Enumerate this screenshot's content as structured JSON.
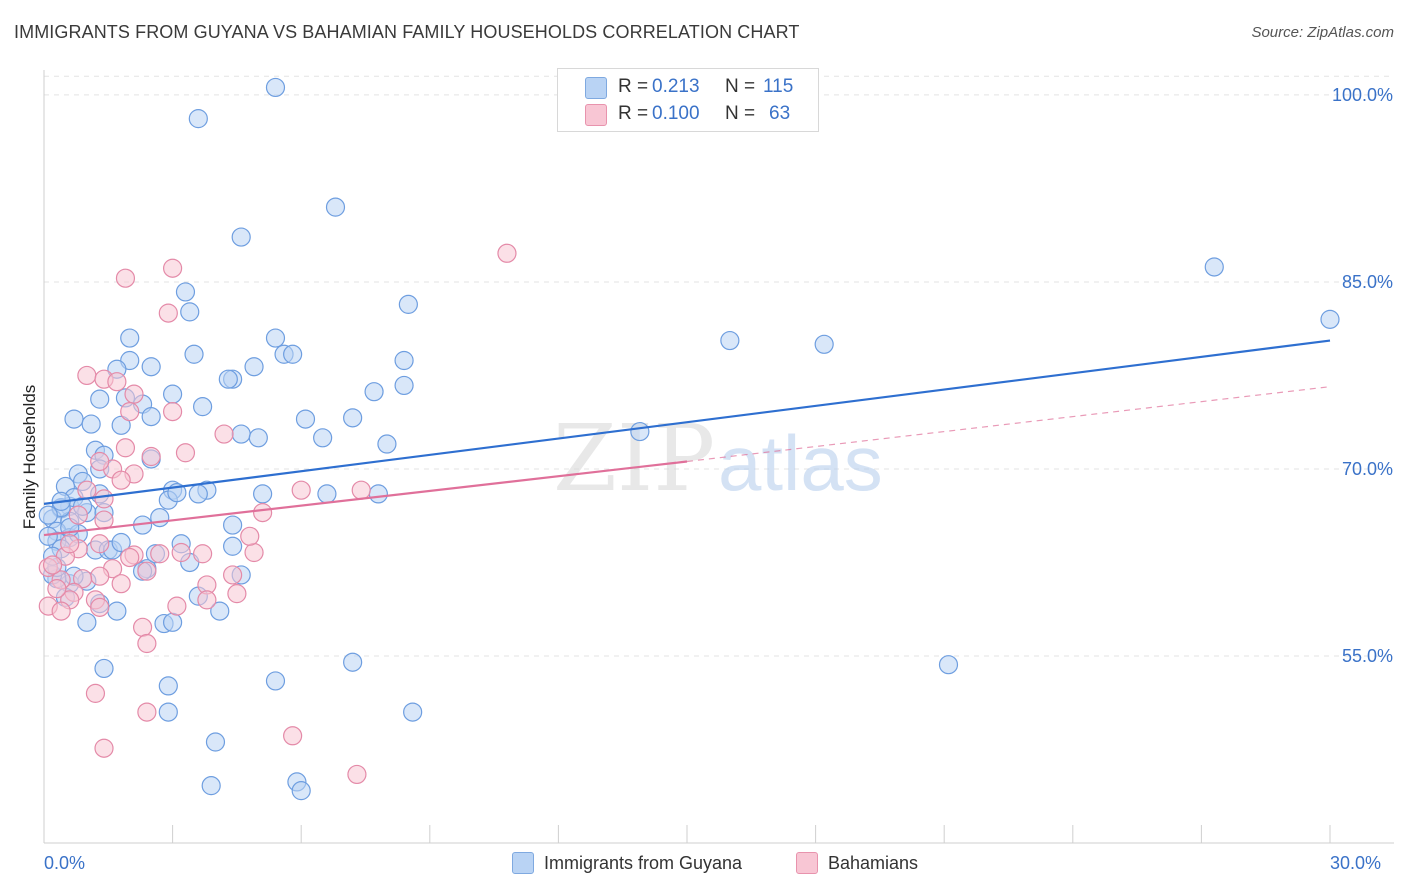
{
  "title": "IMMIGRANTS FROM GUYANA VS BAHAMIAN FAMILY HOUSEHOLDS CORRELATION CHART",
  "source": "Source: ZipAtlas.com",
  "watermark": {
    "zip": "ZIP",
    "atlas": "atlas"
  },
  "colors": {
    "blue_fill": "#b9d3f4",
    "blue_stroke": "#6e9ee0",
    "blue_line": "#2e6fd0",
    "pink_fill": "#f8c6d4",
    "pink_stroke": "#e48aa8",
    "pink_line": "#e0709a",
    "axis_text": "#3a72c8",
    "grid": "#e3e3e3"
  },
  "stats": {
    "rows": [
      {
        "r_label": "R =",
        "r_value": "0.213",
        "n_label": "N =",
        "n_value": "115"
      },
      {
        "r_label": "R =",
        "r_value": "0.100",
        "n_label": "N =",
        "n_value": "63"
      }
    ]
  },
  "legend": {
    "items": [
      {
        "label": "Immigrants from Guyana"
      },
      {
        "label": "Bahamians"
      }
    ]
  },
  "chart_data": {
    "type": "scatter",
    "title": "IMMIGRANTS FROM GUYANA VS BAHAMIAN FAMILY HOUSEHOLDS CORRELATION CHART",
    "xlabel": "",
    "ylabel": "Family Households",
    "xlim": [
      0,
      30
    ],
    "ylim": [
      40,
      102
    ],
    "x_tick_labels": [
      "0.0%",
      "30.0%"
    ],
    "y_ticks": [
      55,
      70,
      85,
      100
    ],
    "y_tick_labels": [
      "55.0%",
      "70.0%",
      "85.0%",
      "100.0%"
    ],
    "grid": "horizontal dashed",
    "legend_position": "bottom-center",
    "series": [
      {
        "name": "Immigrants from Guyana",
        "r": 0.213,
        "n": 115,
        "trend": {
          "x": [
            0,
            30
          ],
          "y": [
            67.2,
            80.3
          ]
        },
        "points": [
          [
            5.4,
            100.6
          ],
          [
            3.6,
            98.1
          ],
          [
            6.8,
            91.0
          ],
          [
            4.6,
            88.6
          ],
          [
            27.3,
            86.2
          ],
          [
            3.3,
            84.2
          ],
          [
            8.5,
            83.2
          ],
          [
            3.4,
            82.6
          ],
          [
            30.0,
            82.0
          ],
          [
            2.0,
            80.5
          ],
          [
            5.4,
            80.5
          ],
          [
            16.0,
            80.3
          ],
          [
            18.2,
            80.0
          ],
          [
            3.5,
            79.2
          ],
          [
            5.6,
            79.2
          ],
          [
            5.8,
            79.2
          ],
          [
            8.4,
            78.7
          ],
          [
            2.0,
            78.7
          ],
          [
            4.9,
            78.2
          ],
          [
            2.5,
            78.2
          ],
          [
            1.7,
            78.0
          ],
          [
            4.4,
            77.2
          ],
          [
            4.3,
            77.2
          ],
          [
            8.4,
            76.7
          ],
          [
            7.7,
            76.2
          ],
          [
            3.0,
            76.0
          ],
          [
            1.3,
            75.6
          ],
          [
            2.3,
            75.2
          ],
          [
            3.7,
            75.0
          ],
          [
            1.9,
            75.7
          ],
          [
            2.5,
            74.2
          ],
          [
            6.1,
            74.0
          ],
          [
            7.2,
            74.1
          ],
          [
            0.7,
            74.0
          ],
          [
            1.1,
            73.6
          ],
          [
            1.8,
            73.5
          ],
          [
            4.6,
            72.8
          ],
          [
            5.0,
            72.5
          ],
          [
            6.5,
            72.5
          ],
          [
            13.9,
            73.0
          ],
          [
            8.0,
            72.0
          ],
          [
            1.2,
            71.5
          ],
          [
            2.5,
            70.8
          ],
          [
            1.4,
            71.1
          ],
          [
            1.3,
            70.0
          ],
          [
            0.8,
            69.6
          ],
          [
            0.9,
            69.0
          ],
          [
            0.5,
            68.6
          ],
          [
            3.0,
            68.3
          ],
          [
            3.8,
            68.3
          ],
          [
            5.1,
            68.0
          ],
          [
            6.6,
            68.0
          ],
          [
            7.8,
            68.0
          ],
          [
            1.3,
            68.0
          ],
          [
            3.6,
            68.0
          ],
          [
            0.6,
            67.0
          ],
          [
            0.7,
            67.7
          ],
          [
            2.9,
            67.5
          ],
          [
            3.1,
            68.1
          ],
          [
            0.4,
            66.8
          ],
          [
            1.0,
            66.5
          ],
          [
            0.9,
            67.0
          ],
          [
            1.4,
            66.5
          ],
          [
            0.2,
            66.0
          ],
          [
            0.6,
            65.8
          ],
          [
            2.3,
            65.5
          ],
          [
            0.3,
            65.0
          ],
          [
            0.6,
            64.5
          ],
          [
            4.4,
            65.5
          ],
          [
            0.8,
            64.8
          ],
          [
            0.3,
            64.2
          ],
          [
            3.2,
            64.0
          ],
          [
            1.2,
            63.5
          ],
          [
            1.5,
            63.5
          ],
          [
            1.6,
            63.5
          ],
          [
            2.4,
            62.0
          ],
          [
            3.4,
            62.5
          ],
          [
            4.4,
            63.8
          ],
          [
            4.6,
            61.5
          ],
          [
            1.0,
            61.0
          ],
          [
            0.6,
            60.8
          ],
          [
            0.7,
            61.4
          ],
          [
            0.3,
            61.2
          ],
          [
            0.2,
            61.5
          ],
          [
            3.6,
            59.8
          ],
          [
            4.1,
            58.6
          ],
          [
            1.7,
            58.6
          ],
          [
            1.0,
            57.7
          ],
          [
            2.8,
            57.6
          ],
          [
            3.0,
            57.7
          ],
          [
            7.2,
            54.5
          ],
          [
            21.1,
            54.3
          ],
          [
            1.4,
            54.0
          ],
          [
            5.4,
            53.0
          ],
          [
            2.9,
            52.6
          ],
          [
            8.6,
            50.5
          ],
          [
            2.9,
            50.5
          ],
          [
            4.0,
            48.1
          ],
          [
            5.9,
            44.9
          ],
          [
            6.0,
            44.2
          ],
          [
            3.9,
            44.6
          ],
          [
            0.3,
            62.1
          ],
          [
            0.5,
            59.7
          ],
          [
            2.6,
            63.2
          ],
          [
            0.4,
            66.9
          ],
          [
            1.3,
            59.2
          ],
          [
            2.3,
            61.8
          ],
          [
            0.1,
            64.6
          ],
          [
            1.8,
            64.1
          ],
          [
            2.7,
            66.1
          ],
          [
            0.4,
            63.6
          ],
          [
            0.2,
            63.0
          ],
          [
            0.4,
            67.4
          ],
          [
            0.6,
            65.3
          ],
          [
            0.1,
            66.3
          ]
        ]
      },
      {
        "name": "Bahamians",
        "r": 0.1,
        "n": 63,
        "trend": {
          "x": [
            0,
            15
          ],
          "y": [
            64.7,
            70.6
          ]
        },
        "trend_extension": {
          "x": [
            15,
            30
          ],
          "y": [
            70.6,
            76.6
          ]
        },
        "points": [
          [
            10.8,
            87.3
          ],
          [
            3.0,
            86.1
          ],
          [
            1.9,
            85.3
          ],
          [
            2.9,
            82.5
          ],
          [
            1.0,
            77.5
          ],
          [
            1.4,
            77.2
          ],
          [
            1.7,
            77.0
          ],
          [
            2.1,
            76.0
          ],
          [
            3.0,
            74.6
          ],
          [
            2.0,
            74.6
          ],
          [
            4.2,
            72.8
          ],
          [
            3.3,
            71.3
          ],
          [
            1.9,
            71.7
          ],
          [
            2.5,
            71.0
          ],
          [
            2.1,
            69.6
          ],
          [
            1.6,
            70.0
          ],
          [
            1.3,
            70.6
          ],
          [
            1.8,
            69.1
          ],
          [
            1.0,
            68.3
          ],
          [
            1.4,
            67.6
          ],
          [
            6.0,
            68.3
          ],
          [
            7.4,
            68.3
          ],
          [
            5.1,
            66.5
          ],
          [
            1.4,
            65.9
          ],
          [
            0.8,
            66.3
          ],
          [
            1.3,
            64.0
          ],
          [
            0.8,
            63.6
          ],
          [
            4.9,
            63.3
          ],
          [
            3.7,
            63.2
          ],
          [
            2.1,
            63.1
          ],
          [
            2.7,
            63.2
          ],
          [
            0.5,
            63.0
          ],
          [
            1.6,
            62.0
          ],
          [
            2.4,
            61.8
          ],
          [
            4.4,
            61.5
          ],
          [
            1.3,
            61.4
          ],
          [
            0.9,
            61.2
          ],
          [
            0.4,
            61.1
          ],
          [
            3.8,
            60.7
          ],
          [
            1.8,
            60.8
          ],
          [
            0.7,
            60.1
          ],
          [
            4.5,
            60.0
          ],
          [
            1.2,
            59.5
          ],
          [
            0.6,
            59.5
          ],
          [
            3.1,
            59.0
          ],
          [
            3.8,
            59.5
          ],
          [
            1.3,
            58.9
          ],
          [
            2.3,
            57.3
          ],
          [
            0.1,
            59.0
          ],
          [
            0.4,
            58.6
          ],
          [
            2.4,
            56.0
          ],
          [
            1.2,
            52.0
          ],
          [
            2.4,
            50.5
          ],
          [
            5.8,
            48.6
          ],
          [
            1.4,
            47.6
          ],
          [
            7.3,
            45.5
          ],
          [
            0.1,
            62.1
          ],
          [
            0.2,
            62.3
          ],
          [
            0.6,
            64.0
          ],
          [
            2.0,
            62.9
          ],
          [
            3.2,
            63.3
          ],
          [
            0.3,
            60.4
          ],
          [
            4.8,
            64.6
          ]
        ]
      }
    ]
  }
}
